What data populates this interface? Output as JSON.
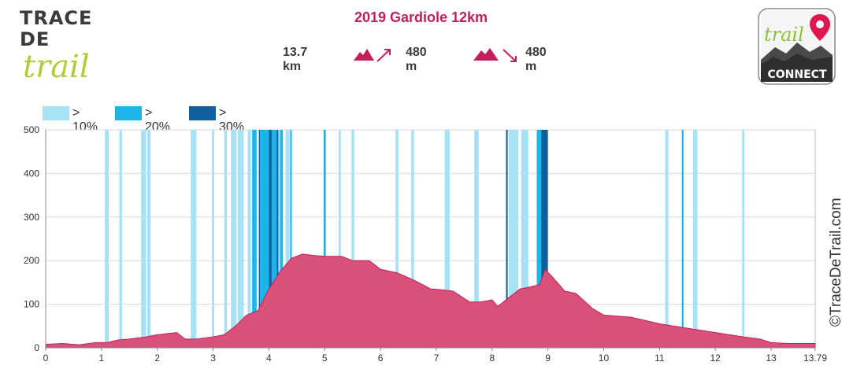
{
  "brand": {
    "line1": "TRACE",
    "line2": "DE",
    "script": "trail"
  },
  "title": "2019 Gardiole 12km",
  "stats": {
    "distance": "13.7 km",
    "ascent": "480 m",
    "descent": "480 m"
  },
  "logo": {
    "script": "trail",
    "word": "CONNECT",
    "icon": "map-pin-icon"
  },
  "legend": [
    {
      "label": "> 10%",
      "color": "#a6e1f5"
    },
    {
      "label": "> 20%",
      "color": "#1bb5ea"
    },
    {
      "label": "> 30%",
      "color": "#0f5e9e"
    }
  ],
  "copyright": "©TraceDeTrail.com",
  "colors": {
    "profile_fill": "#d95179",
    "profile_stroke": "#c41d5d",
    "grid": "#d9d9d9"
  },
  "chart_data": {
    "type": "area",
    "title": "2019 Gardiole 12km",
    "xlabel": "",
    "ylabel": "",
    "xlim": [
      0,
      13.79
    ],
    "ylim": [
      0,
      500
    ],
    "xticks": [
      0,
      1,
      2,
      3,
      4,
      5,
      6,
      7,
      8,
      9,
      10,
      11,
      12,
      13,
      13.79
    ],
    "yticks": [
      0,
      100,
      200,
      300,
      400,
      500
    ],
    "grid": true,
    "legend_position": "top-left",
    "series": [
      {
        "x": [
          0,
          0.3,
          0.6,
          0.9,
          1.1,
          1.3,
          1.5,
          1.8,
          2.0,
          2.2,
          2.35,
          2.5,
          2.7,
          3.0,
          3.2,
          3.4,
          3.6,
          3.8,
          4.0,
          4.2,
          4.4,
          4.6,
          4.8,
          5.0,
          5.3,
          5.5,
          5.8,
          6.0,
          6.3,
          6.6,
          6.9,
          7.1,
          7.3,
          7.6,
          7.8,
          8.0,
          8.1,
          8.3,
          8.5,
          8.7,
          8.85,
          8.95,
          9.1,
          9.3,
          9.5,
          9.8,
          10.0,
          10.5,
          11.0,
          11.5,
          12.0,
          12.5,
          12.8,
          13.0,
          13.3,
          13.79
        ],
        "y": [
          8,
          10,
          7,
          12,
          12,
          18,
          20,
          25,
          30,
          33,
          35,
          20,
          20,
          25,
          30,
          50,
          75,
          85,
          135,
          175,
          205,
          215,
          212,
          210,
          210,
          200,
          200,
          180,
          172,
          155,
          135,
          133,
          130,
          105,
          105,
          110,
          95,
          115,
          135,
          140,
          145,
          180,
          160,
          130,
          125,
          90,
          75,
          70,
          55,
          45,
          35,
          25,
          20,
          12,
          10,
          10
        ]
      }
    ],
    "gradient_bands": [
      {
        "level": 1,
        "from": 1.06,
        "to": 1.13
      },
      {
        "level": 1,
        "from": 1.32,
        "to": 1.37
      },
      {
        "level": 1,
        "from": 1.71,
        "to": 1.8
      },
      {
        "level": 1,
        "from": 1.82,
        "to": 1.88
      },
      {
        "level": 1,
        "from": 2.6,
        "to": 2.7
      },
      {
        "level": 1,
        "from": 2.98,
        "to": 3.02
      },
      {
        "level": 1,
        "from": 3.2,
        "to": 3.25
      },
      {
        "level": 1,
        "from": 3.32,
        "to": 3.42
      },
      {
        "level": 1,
        "from": 3.44,
        "to": 3.55
      },
      {
        "level": 1,
        "from": 3.62,
        "to": 3.68
      },
      {
        "level": 2,
        "from": 3.7,
        "to": 3.78
      },
      {
        "level": 3,
        "from": 3.82,
        "to": 3.84
      },
      {
        "level": 2,
        "from": 3.84,
        "to": 4.0
      },
      {
        "level": 3,
        "from": 4.0,
        "to": 4.05
      },
      {
        "level": 2,
        "from": 4.05,
        "to": 4.14
      },
      {
        "level": 3,
        "from": 4.14,
        "to": 4.17
      },
      {
        "level": 1,
        "from": 4.17,
        "to": 4.2
      },
      {
        "level": 2,
        "from": 4.2,
        "to": 4.25
      },
      {
        "level": 1,
        "from": 4.3,
        "to": 4.37
      },
      {
        "level": 2,
        "from": 4.38,
        "to": 4.41
      },
      {
        "level": 2,
        "from": 4.98,
        "to": 5.02
      },
      {
        "level": 1,
        "from": 5.25,
        "to": 5.29
      },
      {
        "level": 1,
        "from": 5.48,
        "to": 5.53
      },
      {
        "level": 1,
        "from": 6.27,
        "to": 6.32
      },
      {
        "level": 1,
        "from": 6.55,
        "to": 6.6
      },
      {
        "level": 1,
        "from": 7.15,
        "to": 7.24
      },
      {
        "level": 1,
        "from": 7.68,
        "to": 7.76
      },
      {
        "level": 3,
        "from": 8.25,
        "to": 8.28
      },
      {
        "level": 1,
        "from": 8.3,
        "to": 8.47
      },
      {
        "level": 1,
        "from": 8.52,
        "to": 8.65
      },
      {
        "level": 2,
        "from": 8.8,
        "to": 8.88
      },
      {
        "level": 3,
        "from": 8.88,
        "to": 9.0
      },
      {
        "level": 1,
        "from": 11.1,
        "to": 11.16
      },
      {
        "level": 2,
        "from": 11.4,
        "to": 11.43
      },
      {
        "level": 1,
        "from": 11.6,
        "to": 11.68
      },
      {
        "level": 1,
        "from": 12.48,
        "to": 12.52
      }
    ]
  }
}
